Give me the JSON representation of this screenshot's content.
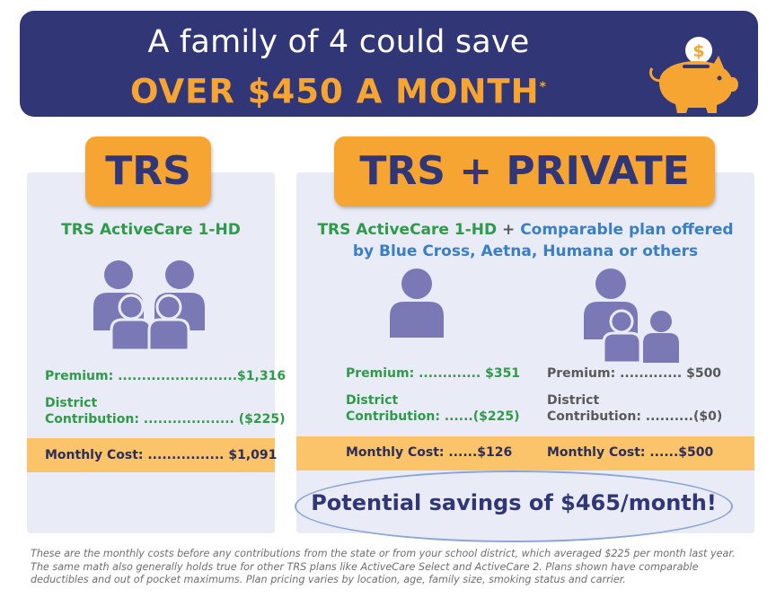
{
  "banner": {
    "line1": "A family of 4 could save",
    "line2": "OVER $450 A MONTH",
    "asterisk": "*"
  },
  "trs": {
    "badge": "TRS",
    "plan": "TRS ActiveCare 1-HD",
    "premium": "Premium: .........................$1,316",
    "district_label": "District",
    "district_value": "Contribution: ................... ($225)",
    "monthly": "Monthly Cost: ................ $1,091"
  },
  "private": {
    "badge": "TRS + PRIVATE",
    "plan_part1": "TRS ActiveCare 1-HD",
    "plan_plus": " + ",
    "plan_part2": "Comparable plan offered",
    "plan_line2": "by Blue Cross, Aetna, Humana or others",
    "left": {
      "premium": "Premium: ............. $351",
      "district_label": "District",
      "district_value": "Contribution: ......($225)",
      "monthly": "Monthly Cost: ......$126"
    },
    "right": {
      "premium": "Premium: ............. $500",
      "district_label": "District",
      "district_value": "Contribution: ..........($0)",
      "monthly": "Monthly Cost: ......$500"
    }
  },
  "savings": "Potential savings of $465/month!",
  "footnote": "These are the monthly costs before any contributions from the state or from your school district, which averaged $225 per month last year. The same math also generally holds true for other TRS plans like ActiveCare Select and ActiveCare 2. Plans shown have comparable deductibles and out of pocket maximums. Plan pricing varies by location, age, family size, smoking status and carrier.",
  "colors": {
    "navy": "#313676",
    "orange": "#f6a532",
    "green": "#2f9a4a",
    "blue": "#3a7fc4",
    "person": "#7b78b6"
  },
  "pig_coin": "$"
}
